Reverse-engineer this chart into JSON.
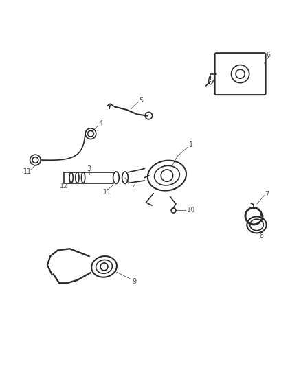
{
  "bg_color": "#ffffff",
  "line_color": "#2a2a2a",
  "label_color": "#555555",
  "line_width": 1.2,
  "fig_width": 4.38,
  "fig_height": 5.33,
  "dpi": 100
}
